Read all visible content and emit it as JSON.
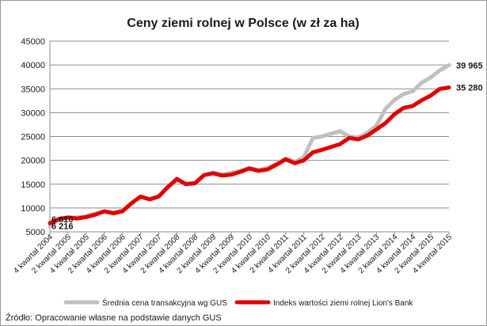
{
  "chart_data": {
    "type": "line",
    "title": "Ceny ziemi rolnej w Polsce (w zł za ha)",
    "xlabel": "",
    "ylabel": "",
    "ylim": [
      5000,
      45000
    ],
    "yticks": [
      "5000",
      "10000",
      "15000",
      "20000",
      "25000",
      "30000",
      "35000",
      "40000",
      "45000"
    ],
    "grid": true,
    "legend_position": "bottom",
    "categories": [
      "4 kwartał 2004",
      "1 kwartał 2005",
      "2 kwartał 2005",
      "3 kwartał 2005",
      "4 kwartał 2005",
      "1 kwartał 2006",
      "2 kwartał 2006",
      "3 kwartał 2006",
      "4 kwartał 2006",
      "1 kwartał 2007",
      "2 kwartał 2007",
      "3 kwartał 2007",
      "4 kwartał 2007",
      "1 kwartał 2008",
      "2 kwartał 2008",
      "3 kwartał 2008",
      "4 kwartał 2008",
      "1 kwartał 2009",
      "2 kwartał 2009",
      "3 kwartał 2009",
      "4 kwartał 2009",
      "1 kwartał 2010",
      "2 kwartał 2010",
      "3 kwartał 2010",
      "4 kwartał 2010",
      "1 kwartał 2011",
      "2 kwartał 2011",
      "3 kwartał 2011",
      "4 kwartał 2011",
      "1 kwartał 2012",
      "2 kwartał 2012",
      "3 kwartał 2012",
      "4 kwartał 2012",
      "1 kwartał 2013",
      "2 kwartał 2013",
      "3 kwartał 2013",
      "4 kwartał 2013",
      "1 kwartał 2014",
      "2 kwartał 2014",
      "3 kwartał 2014",
      "4 kwartał 2014",
      "1 kwartał 2015",
      "2 kwartał 2015",
      "3 kwartał 2015",
      "4 kwartał 2015"
    ],
    "xtick_labels": [
      "4 kwartał 2004",
      "2 kwartał 2005",
      "4 kwartał 2005",
      "2 kwartał 2006",
      "4 kwartał 2006",
      "2 kwartał 2007",
      "4 kwartał 2007",
      "2 kwartał 2008",
      "4 kwartał 2008",
      "2 kwartał 2009",
      "4 kwartał 2009",
      "2 kwartał 2010",
      "4 kwartał 2010",
      "2 kwartał 2011",
      "4 kwartał 2011",
      "2 kwartał 2012",
      "4 kwartał 2012",
      "2 kwartał 2013",
      "4 kwartał 2013",
      "2 kwartał 2014",
      "4 kwartał 2014",
      "2 kwartał 2015",
      "4 kwartał 2015"
    ],
    "series": [
      {
        "name": "Średnia cena transakcyjna wg GUS",
        "color": "#c0c0c0",
        "values": [
          6216,
          7700,
          8000,
          8000,
          8300,
          8800,
          9300,
          9000,
          9500,
          11000,
          12300,
          11900,
          12500,
          14300,
          15900,
          15100,
          15200,
          16900,
          17400,
          17000,
          17400,
          17800,
          18400,
          18000,
          18400,
          19300,
          20400,
          19700,
          20700,
          24700,
          25000,
          25600,
          26100,
          25000,
          24800,
          25800,
          27300,
          30800,
          32700,
          33900,
          34500,
          36300,
          37400,
          38900,
          39965
        ],
        "end_label": "39 965",
        "start_label": "6 216"
      },
      {
        "name": "Indeks wartości ziemi rolnej Lion's Bank",
        "color": "#e00000",
        "values": [
          6810,
          7700,
          8000,
          7800,
          8100,
          8600,
          9300,
          8900,
          9300,
          11000,
          12400,
          11800,
          12400,
          14400,
          16100,
          15000,
          15200,
          16900,
          17300,
          16800,
          17000,
          17600,
          18300,
          17800,
          18100,
          19100,
          20200,
          19400,
          20000,
          21700,
          22200,
          22800,
          23400,
          24700,
          24400,
          25200,
          26500,
          27800,
          29700,
          31000,
          31400,
          32600,
          33600,
          35000,
          35280
        ],
        "end_label": "35 280",
        "start_label": "6 810"
      }
    ]
  },
  "source_note": "Źródło: Opracowanie własne na podstawie danych GUS"
}
